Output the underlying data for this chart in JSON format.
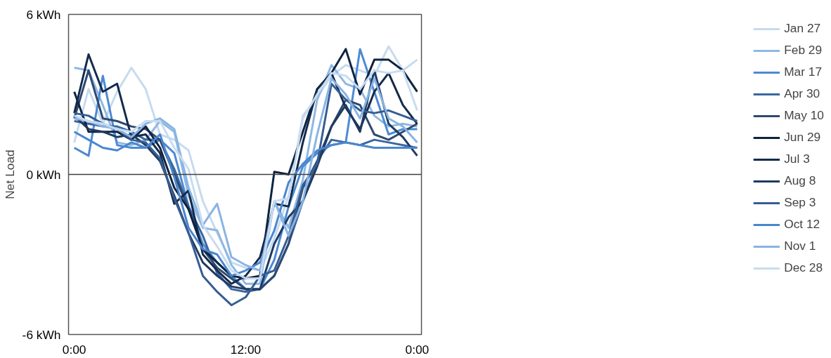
{
  "chart_data": {
    "type": "line",
    "ylabel": "Net Load",
    "x": [
      0,
      1,
      2,
      3,
      4,
      5,
      6,
      7,
      8,
      9,
      10,
      11,
      12,
      13,
      14,
      15,
      16,
      17,
      18,
      19,
      20,
      21,
      22,
      23,
      24
    ],
    "xlim": [
      -0.4,
      24.3
    ],
    "ylim": [
      -6,
      6
    ],
    "xticks": [
      {
        "value": 0,
        "label": "0:00"
      },
      {
        "value": 12,
        "label": "12:00"
      },
      {
        "value": 24,
        "label": "0:00"
      }
    ],
    "yticks": [
      {
        "value": -6,
        "label": "-6 kWh"
      },
      {
        "value": 0,
        "label": "0 kWh"
      },
      {
        "value": 6,
        "label": "6 kWh"
      }
    ],
    "ref_lines": [
      {
        "axis": "y",
        "value": 0,
        "color": "#404040"
      }
    ],
    "grid": false,
    "legend": "right",
    "marker": "none",
    "line_style": "solid",
    "series": [
      {
        "name": "Jan 27",
        "color": "#c6dbef",
        "values": [
          1.2,
          3.2,
          1.9,
          3.1,
          4.0,
          3.2,
          1.5,
          1.3,
          0.9,
          -1.0,
          -2.2,
          -3.3,
          -3.5,
          -3.6,
          -2.4,
          -0.8,
          2.2,
          2.9,
          3.7,
          4.1,
          3.9,
          3.7,
          4.8,
          3.9,
          4.3
        ]
      },
      {
        "name": "Feb 29",
        "color": "#8fb8e3",
        "values": [
          4.0,
          3.9,
          2.6,
          1.2,
          1.1,
          1.3,
          2.0,
          1.6,
          -0.8,
          -2.0,
          -2.1,
          -3.4,
          -4.1,
          -4.1,
          -1.0,
          -2.0,
          -0.2,
          2.8,
          4.1,
          3.4,
          3.2,
          2.2,
          1.8,
          1.9,
          1.8
        ]
      },
      {
        "name": "Mar 17",
        "color": "#4d8ad3",
        "values": [
          1.0,
          0.7,
          3.7,
          1.1,
          1.0,
          1.0,
          1.3,
          0.8,
          -1.2,
          -2.6,
          -3.3,
          -3.8,
          -4.3,
          -4.3,
          -3.2,
          -1.2,
          0.3,
          0.8,
          1.1,
          1.2,
          4.7,
          3.1,
          1.5,
          1.7,
          1.7
        ]
      },
      {
        "name": "Apr 30",
        "color": "#3a679f",
        "values": [
          2.0,
          1.9,
          1.8,
          1.8,
          1.6,
          1.3,
          1.3,
          0.2,
          -1.2,
          -2.3,
          -3.7,
          -4.3,
          -4.4,
          -4.3,
          -3.8,
          -2.6,
          -1.0,
          0.5,
          1.3,
          1.2,
          1.1,
          1.3,
          1.2,
          1.1,
          1.0
        ]
      },
      {
        "name": "May 10",
        "color": "#2e4a72",
        "values": [
          2.1,
          3.9,
          2.1,
          2.0,
          1.8,
          1.7,
          1.3,
          0.0,
          -1.3,
          -2.8,
          -3.5,
          -3.9,
          -4.3,
          -4.3,
          -3.8,
          -2.6,
          -0.5,
          0.5,
          1.8,
          2.8,
          2.6,
          1.5,
          1.3,
          1.6,
          1.9
        ]
      },
      {
        "name": "Jun 29",
        "color": "#0e2340",
        "values": [
          3.1,
          1.6,
          1.6,
          1.6,
          1.3,
          1.8,
          1.0,
          -0.5,
          -1.3,
          -2.8,
          -3.3,
          -3.8,
          -3.9,
          -3.8,
          0.1,
          0.0,
          1.6,
          3.2,
          3.8,
          4.7,
          3.0,
          4.3,
          4.3,
          3.9,
          3.1
        ]
      },
      {
        "name": "Jul 3",
        "color": "#142a4c",
        "values": [
          2.3,
          4.5,
          3.1,
          3.4,
          1.4,
          1.5,
          0.8,
          -1.1,
          -0.6,
          -3.0,
          -3.6,
          -4.1,
          -3.8,
          -3.1,
          -1.1,
          -1.2,
          1.2,
          3.2,
          3.8,
          2.5,
          1.7,
          3.1,
          3.8,
          2.6,
          1.9
        ]
      },
      {
        "name": "Aug 8",
        "color": "#1f3a62",
        "values": [
          2.2,
          1.7,
          1.6,
          1.4,
          1.5,
          1.1,
          0.5,
          -0.8,
          -2.2,
          -3.3,
          -3.8,
          -4.2,
          -4.3,
          -4.3,
          -2.6,
          -1.6,
          -1.0,
          0.3,
          1.8,
          2.6,
          1.6,
          3.9,
          1.9,
          1.4,
          0.7
        ]
      },
      {
        "name": "Sep 3",
        "color": "#365d93",
        "values": [
          2.3,
          2.2,
          1.9,
          1.7,
          1.3,
          1.2,
          0.6,
          -0.9,
          -2.2,
          -3.8,
          -4.4,
          -4.9,
          -4.6,
          -3.8,
          -3.6,
          -2.3,
          -0.4,
          0.4,
          3.4,
          2.8,
          2.4,
          2.3,
          2.4,
          2.2,
          2.0
        ]
      },
      {
        "name": "Oct 12",
        "color": "#4a86cf",
        "values": [
          1.6,
          1.3,
          1.0,
          0.9,
          1.2,
          1.0,
          1.5,
          -0.1,
          -2.0,
          -2.8,
          -3.0,
          -3.8,
          -3.6,
          -3.3,
          -2.1,
          -0.3,
          0.4,
          0.9,
          1.1,
          1.2,
          1.1,
          1.0,
          1.0,
          1.0,
          1.0
        ]
      },
      {
        "name": "Nov 1",
        "color": "#8ab4e3",
        "values": [
          2.1,
          2.0,
          1.8,
          1.7,
          1.4,
          1.9,
          2.1,
          1.7,
          -0.5,
          -1.9,
          -1.1,
          -3.1,
          -3.4,
          -3.6,
          -1.0,
          -2.3,
          -1.0,
          1.5,
          3.6,
          3.0,
          2.1,
          3.6,
          2.1,
          1.8,
          1.2
        ]
      },
      {
        "name": "Dec 28",
        "color": "#c8dcf1",
        "values": [
          2.2,
          2.0,
          1.9,
          1.7,
          1.6,
          2.0,
          2.0,
          1.0,
          0.2,
          -1.9,
          -2.7,
          -3.6,
          -3.9,
          -3.9,
          -1.0,
          -0.9,
          2.1,
          3.0,
          3.8,
          3.7,
          3.2,
          3.9,
          3.8,
          3.9,
          2.4
        ]
      }
    ]
  }
}
